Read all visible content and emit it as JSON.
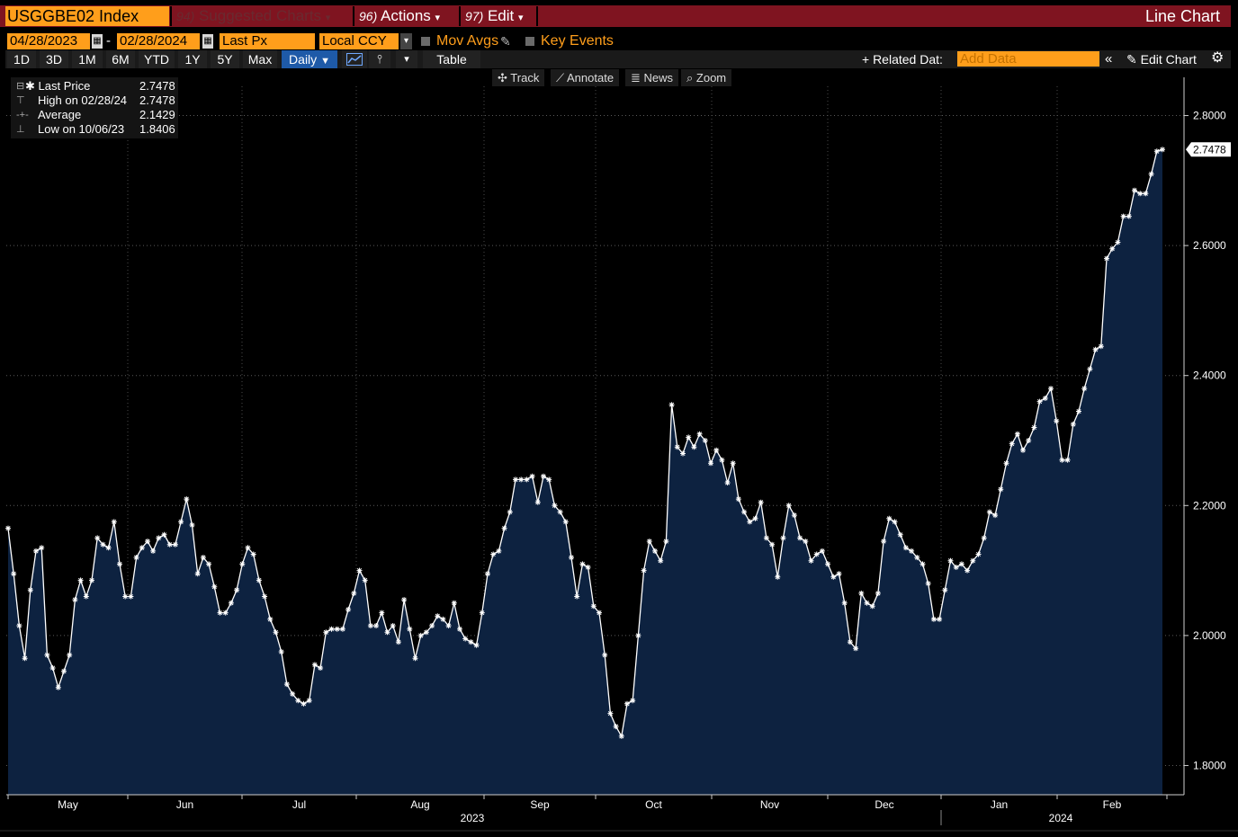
{
  "header": {
    "ticker": "USGGBE02 Index",
    "menu": [
      {
        "num": "94)",
        "label": "Suggested Charts",
        "disabled": true
      },
      {
        "num": "96)",
        "label": "Actions",
        "disabled": false
      },
      {
        "num": "97)",
        "label": "Edit",
        "disabled": false
      }
    ],
    "chart_title": "Line Chart"
  },
  "controls": {
    "start_date": "04/28/2023",
    "date_sep": "-",
    "end_date": "02/28/2024",
    "field": "Last Px",
    "currency": "Local CCY",
    "mov_avgs": "Mov Avgs",
    "key_events": "Key Events",
    "periods": [
      "1D",
      "3D",
      "1M",
      "6M",
      "YTD",
      "1Y",
      "5Y",
      "Max"
    ],
    "frequency": "Daily",
    "table": "Table",
    "related_data": "+ Related Dat:",
    "add_data_placeholder": "Add Data",
    "edit_chart": "Edit Chart"
  },
  "tools": [
    "Track",
    "Annotate",
    "News",
    "Zoom"
  ],
  "legend": [
    {
      "label": "Last Price",
      "value": "2.7478"
    },
    {
      "label": "High on 02/28/24",
      "value": "2.7478"
    },
    {
      "label": "Average",
      "value": "2.1429"
    },
    {
      "label": "Low on 10/06/23",
      "value": "1.8406"
    }
  ],
  "colors": {
    "accent": "#ff9e1b",
    "title_bar": "#7f1420",
    "area_fill": "#0d2240",
    "line": "#ffffff"
  },
  "chart_data": {
    "type": "area",
    "series": [
      {
        "values": [
          2.165,
          2.095,
          2.015,
          1.965,
          2.07,
          2.13,
          2.135,
          1.97,
          1.95,
          1.92,
          1.945,
          1.97,
          2.055,
          2.085,
          2.06,
          2.085,
          2.15,
          2.14,
          2.135,
          2.175,
          2.11,
          2.06,
          2.06,
          2.12,
          2.135,
          2.145,
          2.13,
          2.15,
          2.155,
          2.14,
          2.14,
          2.175,
          2.21,
          2.17,
          2.095,
          2.12,
          2.11,
          2.075,
          2.035,
          2.035,
          2.05,
          2.07,
          2.11,
          2.135,
          2.125,
          2.085,
          2.06,
          2.025,
          2.005,
          1.975,
          1.925,
          1.91,
          1.9,
          1.895,
          1.9,
          1.955,
          1.95,
          2.005,
          2.01,
          2.01,
          2.01,
          2.04,
          2.065,
          2.1,
          2.085,
          2.015,
          2.015,
          2.035,
          2.005,
          2.015,
          1.99,
          2.055,
          2.01,
          1.965,
          2.0,
          2.005,
          2.015,
          2.03,
          2.025,
          2.015,
          2.05,
          2.01,
          1.995,
          1.99,
          1.985,
          2.035,
          2.095,
          2.125,
          2.13,
          2.165,
          2.19,
          2.24,
          2.24,
          2.24,
          2.245,
          2.205,
          2.245,
          2.24,
          2.2,
          2.19,
          2.175,
          2.12,
          2.06,
          2.11,
          2.105,
          2.045,
          2.035,
          1.97,
          1.88,
          1.86,
          1.845,
          1.895,
          1.9,
          2.0,
          2.1,
          2.145,
          2.13,
          2.115,
          2.145,
          2.355,
          2.29,
          2.28,
          2.305,
          2.29,
          2.31,
          2.3,
          2.265,
          2.285,
          2.27,
          2.235,
          2.265,
          2.21,
          2.19,
          2.175,
          2.18,
          2.205,
          2.15,
          2.14,
          2.09,
          2.15,
          2.2,
          2.185,
          2.15,
          2.145,
          2.115,
          2.125,
          2.13,
          2.11,
          2.09,
          2.095,
          2.05,
          1.99,
          1.98,
          2.065,
          2.05,
          2.045,
          2.065,
          2.145,
          2.18,
          2.175,
          2.155,
          2.135,
          2.13,
          2.12,
          2.11,
          2.08,
          2.025,
          2.025,
          2.07,
          2.115,
          2.105,
          2.11,
          2.1,
          2.115,
          2.125,
          2.15,
          2.19,
          2.185,
          2.225,
          2.265,
          2.295,
          2.31,
          2.285,
          2.3,
          2.32,
          2.36,
          2.365,
          2.38,
          2.33,
          2.27,
          2.27,
          2.325,
          2.345,
          2.38,
          2.41,
          2.44,
          2.445,
          2.58,
          2.595,
          2.605,
          2.645,
          2.645,
          2.685,
          2.68,
          2.68,
          2.71,
          2.745,
          2.7478
        ]
      }
    ],
    "x_labels": [
      "May",
      "Jun",
      "Jul",
      "Aug",
      "Sep",
      "Oct",
      "Nov",
      "Dec",
      "Jan",
      "Feb"
    ],
    "year_labels": [
      "2023",
      "2024"
    ],
    "y_ticks": [
      "2.8000",
      "2.6000",
      "2.4000",
      "2.2000",
      "2.0000",
      "1.8000"
    ],
    "ylim": [
      1.755,
      2.845
    ],
    "last_value_label": "2.7478",
    "grid": true
  }
}
